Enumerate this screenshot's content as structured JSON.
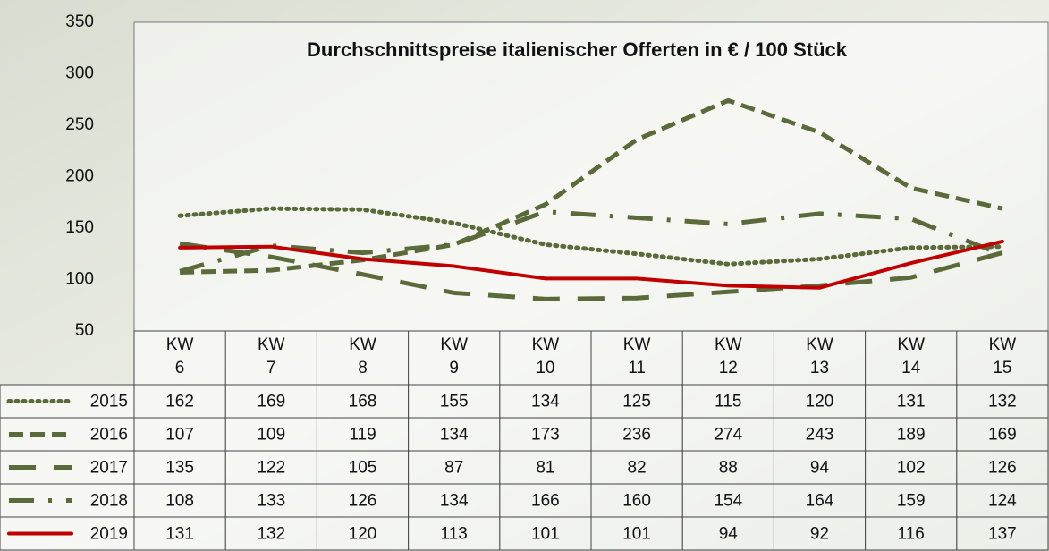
{
  "chart_data": {
    "type": "line",
    "title": "Durchschnittspreise italienischer Offerten in € / 100 Stück",
    "categories": [
      "KW\n6",
      "KW\n7",
      "KW\n8",
      "KW\n9",
      "KW\n10",
      "KW\n11",
      "KW\n12",
      "KW\n13",
      "KW\n14",
      "KW\n15"
    ],
    "series": [
      {
        "name": "2015",
        "color": "#5b6a3a",
        "style": "dotted",
        "values": [
          162,
          169,
          168,
          155,
          134,
          125,
          115,
          120,
          131,
          132
        ]
      },
      {
        "name": "2016",
        "color": "#5b6a3a",
        "style": "dashed",
        "values": [
          107,
          109,
          119,
          134,
          173,
          236,
          274,
          243,
          189,
          169
        ]
      },
      {
        "name": "2017",
        "color": "#5b6a3a",
        "style": "long-dash",
        "values": [
          135,
          122,
          105,
          87,
          81,
          82,
          88,
          94,
          102,
          126
        ]
      },
      {
        "name": "2018",
        "color": "#5b6a3a",
        "style": "dash-dot",
        "values": [
          108,
          133,
          126,
          134,
          166,
          160,
          154,
          164,
          159,
          124
        ]
      },
      {
        "name": "2019",
        "color": "#c00000",
        "style": "solid",
        "values": [
          131,
          132,
          120,
          113,
          101,
          101,
          94,
          92,
          116,
          137
        ]
      }
    ],
    "ylim": [
      50,
      350
    ],
    "yticks": [
      50,
      100,
      150,
      200,
      250,
      300,
      350
    ],
    "grid": false
  }
}
